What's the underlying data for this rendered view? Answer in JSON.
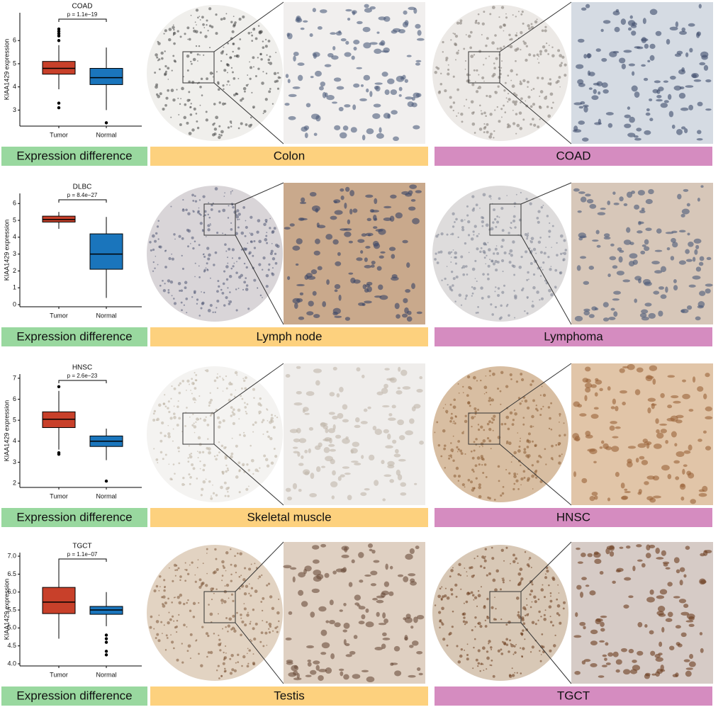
{
  "chart_data": [
    {
      "type": "box",
      "title": "COAD",
      "annotation": "p = 1.1e−19",
      "ylabel": "KIAA1429 expression",
      "categories": [
        "Tumor",
        "Normal"
      ],
      "colors": [
        "#c8402a",
        "#1a75bc"
      ],
      "ylim": [
        2.4,
        7.2
      ],
      "yticks": [
        3,
        4,
        5,
        6
      ],
      "boxes": [
        {
          "whislo": 3.9,
          "q1": 4.55,
          "med": 4.8,
          "q3": 5.1,
          "whishi": 5.8,
          "fliers": [
            6.5,
            6.4,
            6.3,
            6.2,
            6.0,
            3.3,
            3.1
          ]
        },
        {
          "whislo": 3.0,
          "q1": 4.1,
          "med": 4.4,
          "q3": 4.8,
          "whishi": 5.7,
          "fliers": [
            2.45
          ]
        }
      ]
    },
    {
      "type": "box",
      "title": "DLBC",
      "annotation": "p = 8.4e−27",
      "ylabel": "KIAA1429 expression",
      "categories": [
        "Tumor",
        "Normal"
      ],
      "colors": [
        "#c8402a",
        "#1a75bc"
      ],
      "ylim": [
        0,
        6.6
      ],
      "yticks": [
        0,
        1,
        2,
        3,
        4,
        5,
        6
      ],
      "boxes": [
        {
          "whislo": 4.5,
          "q1": 4.9,
          "med": 5.05,
          "q3": 5.25,
          "whishi": 5.5,
          "fliers": []
        },
        {
          "whislo": 0.4,
          "q1": 2.1,
          "med": 3.0,
          "q3": 4.2,
          "whishi": 5.2,
          "fliers": []
        }
      ]
    },
    {
      "type": "box",
      "title": "HNSC",
      "annotation": "p = 2.6e−23",
      "ylabel": "KIAA1429 expression",
      "categories": [
        "Tumor",
        "Normal"
      ],
      "colors": [
        "#c8402a",
        "#1a75bc"
      ],
      "ylim": [
        1.9,
        7.2
      ],
      "yticks": [
        2,
        3,
        4,
        5,
        6,
        7
      ],
      "boxes": [
        {
          "whislo": 3.6,
          "q1": 4.65,
          "med": 5.05,
          "q3": 5.4,
          "whishi": 6.4,
          "fliers": [
            6.6,
            3.45,
            3.38
          ]
        },
        {
          "whislo": 3.1,
          "q1": 3.75,
          "med": 4.0,
          "q3": 4.25,
          "whishi": 4.6,
          "fliers": [
            2.1
          ]
        }
      ]
    },
    {
      "type": "box",
      "title": "TGCT",
      "annotation": "p = 1.1e−07",
      "ylabel": "KIAA1429 expression",
      "categories": [
        "Tumor",
        "Normal"
      ],
      "colors": [
        "#c8402a",
        "#1a75bc"
      ],
      "ylim": [
        4.0,
        7.1
      ],
      "yticks": [
        {
          "value": 4,
          "label": "4.0"
        },
        4.5,
        {
          "value": 5,
          "label": "5.0"
        },
        5.5,
        {
          "value": 6,
          "label": "6.0"
        },
        6.5,
        {
          "value": 7,
          "label": "7.0"
        }
      ],
      "boxes": [
        {
          "whislo": 4.7,
          "q1": 5.4,
          "med": 5.72,
          "q3": 6.13,
          "whishi": 6.9,
          "fliers": []
        },
        {
          "whislo": 5.05,
          "q1": 5.38,
          "med": 5.5,
          "q3": 5.6,
          "whishi": 6.0,
          "fliers": [
            4.8,
            4.7,
            4.6,
            4.35,
            4.25
          ]
        }
      ]
    }
  ],
  "rows": [
    {
      "left": "Expression difference",
      "middle": "Colon",
      "right": "COAD"
    },
    {
      "left": "Expression difference",
      "middle": "Lymph node",
      "right": "Lymphoma"
    },
    {
      "left": "Expression difference",
      "middle": "Skeletal muscle",
      "right": "HNSC"
    },
    {
      "left": "Expression difference",
      "middle": "Testis",
      "right": "TGCT"
    }
  ]
}
